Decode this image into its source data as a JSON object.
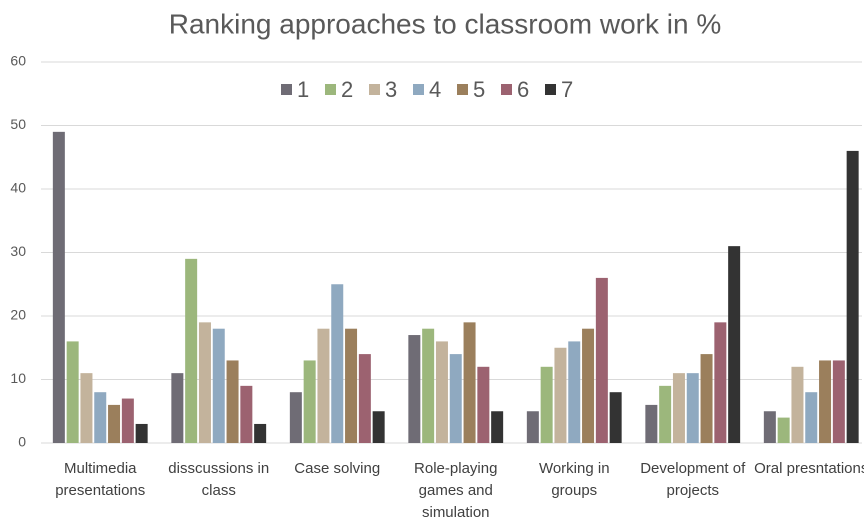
{
  "chart_data": {
    "type": "bar",
    "title": "Ranking approaches to classroom work in %",
    "categories": [
      "Multimedia presentations",
      "disscussions in class",
      "Case solving",
      "Role-playing games and simulation",
      "Working in groups",
      "Development of projects",
      "Oral presntations"
    ],
    "series": [
      {
        "name": "1",
        "color": "#6f6c75",
        "values": [
          49,
          11,
          8,
          17,
          5,
          6,
          5
        ]
      },
      {
        "name": "2",
        "color": "#9cb77c",
        "values": [
          16,
          29,
          13,
          18,
          12,
          9,
          4
        ]
      },
      {
        "name": "3",
        "color": "#c3b39c",
        "values": [
          11,
          19,
          18,
          16,
          15,
          11,
          12
        ]
      },
      {
        "name": "4",
        "color": "#8fa9c0",
        "values": [
          8,
          18,
          25,
          14,
          16,
          11,
          8
        ]
      },
      {
        "name": "5",
        "color": "#9b7f5c",
        "values": [
          6,
          13,
          18,
          19,
          18,
          14,
          13
        ]
      },
      {
        "name": "6",
        "color": "#9c6270",
        "values": [
          7,
          9,
          14,
          12,
          26,
          19,
          13
        ]
      },
      {
        "name": "7",
        "color": "#333333",
        "values": [
          3,
          3,
          5,
          5,
          8,
          31,
          46
        ]
      }
    ],
    "ylim": [
      0,
      60
    ],
    "yticks": [
      0,
      10,
      20,
      30,
      40,
      50,
      60
    ],
    "grid": true,
    "legend": "top"
  }
}
